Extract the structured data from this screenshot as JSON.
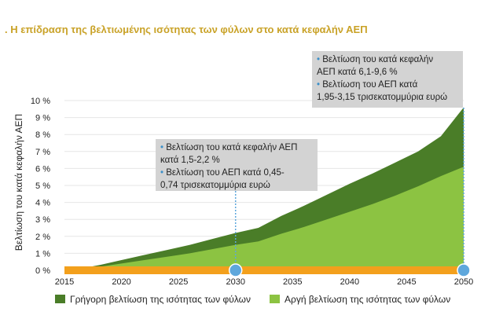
{
  "title": ". Η επίδραση της βελτιωμένης ισότητας των φύλων στο κατά κεφαλήν ΑΕΠ",
  "colors": {
    "fast": "#4a7d28",
    "slow": "#8cc342",
    "baseline": "#f3a01c",
    "marker": "#5ea7dc",
    "callout_bg": "#d3d3d3",
    "title": "#c9a227"
  },
  "callouts": {
    "c2030": {
      "line1": "Βελτίωση του κατά κεφαλήν ΑΕΠ",
      "line2": "κατά 1,5-2,2 %",
      "line3": "Βελτίωση του ΑΕΠ κατά 0,45-",
      "line4": "0,74 τρισεκατομμύρια ευρώ"
    },
    "c2050": {
      "line1": "Βελτίωση του κατά κεφαλήν",
      "line2": "ΑΕΠ κατά 6,1-9,6 %",
      "line3": "Βελτίωση του ΑΕΠ κατά",
      "line4": "1,95-3,15 τρισεκατομμύρια ευρώ"
    }
  },
  "chart_data": {
    "type": "area",
    "ylabel": "Βελτίωση του κατά κεφαλήν ΑΕΠ",
    "xlim": [
      2015,
      2050
    ],
    "ylim": [
      0,
      10
    ],
    "x_ticks": [
      "2015",
      "2020",
      "2025",
      "2030",
      "2035",
      "2040",
      "2045",
      "2050"
    ],
    "y_ticks": [
      "0 %",
      "1 %",
      "2 %",
      "3 %",
      "4 %",
      "5 %",
      "6 %",
      "7 %",
      "8 %",
      "9 %",
      "10 %"
    ],
    "x": [
      2016,
      2018,
      2020,
      2022,
      2024,
      2026,
      2028,
      2030,
      2032,
      2034,
      2036,
      2038,
      2040,
      2042,
      2044,
      2046,
      2048,
      2050
    ],
    "series": [
      {
        "name": "Γρήγορη βελτίωση της ισότητας των φύλων",
        "values": [
          0.05,
          0.3,
          0.6,
          0.9,
          1.2,
          1.5,
          1.85,
          2.2,
          2.5,
          3.2,
          3.8,
          4.45,
          5.1,
          5.7,
          6.35,
          7.0,
          7.9,
          9.6
        ]
      },
      {
        "name": "Αργή βελτίωση της ισότητας των φύλων",
        "values": [
          0.05,
          0.2,
          0.4,
          0.6,
          0.8,
          1.0,
          1.25,
          1.5,
          1.7,
          2.15,
          2.55,
          3.0,
          3.45,
          3.9,
          4.4,
          4.95,
          5.55,
          6.1
        ]
      }
    ],
    "markers": [
      2030,
      2050
    ],
    "legend_position": "bottom"
  }
}
